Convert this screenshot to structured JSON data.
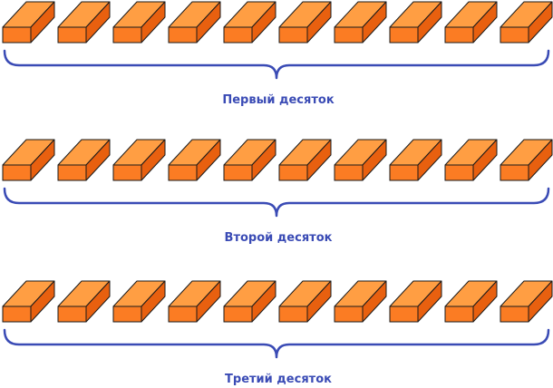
{
  "colors": {
    "block_top": "#ff9e43",
    "block_front": "#fb7c23",
    "block_side": "#e8600f",
    "block_outline": "#1a1a1a",
    "brace": "#3a4bb5",
    "label": "#3a4bb5"
  },
  "groups": [
    {
      "label": "Первый десяток",
      "count": 10
    },
    {
      "label": "Второй десяток",
      "count": 10
    },
    {
      "label": "Третий десяток",
      "count": 10
    }
  ]
}
